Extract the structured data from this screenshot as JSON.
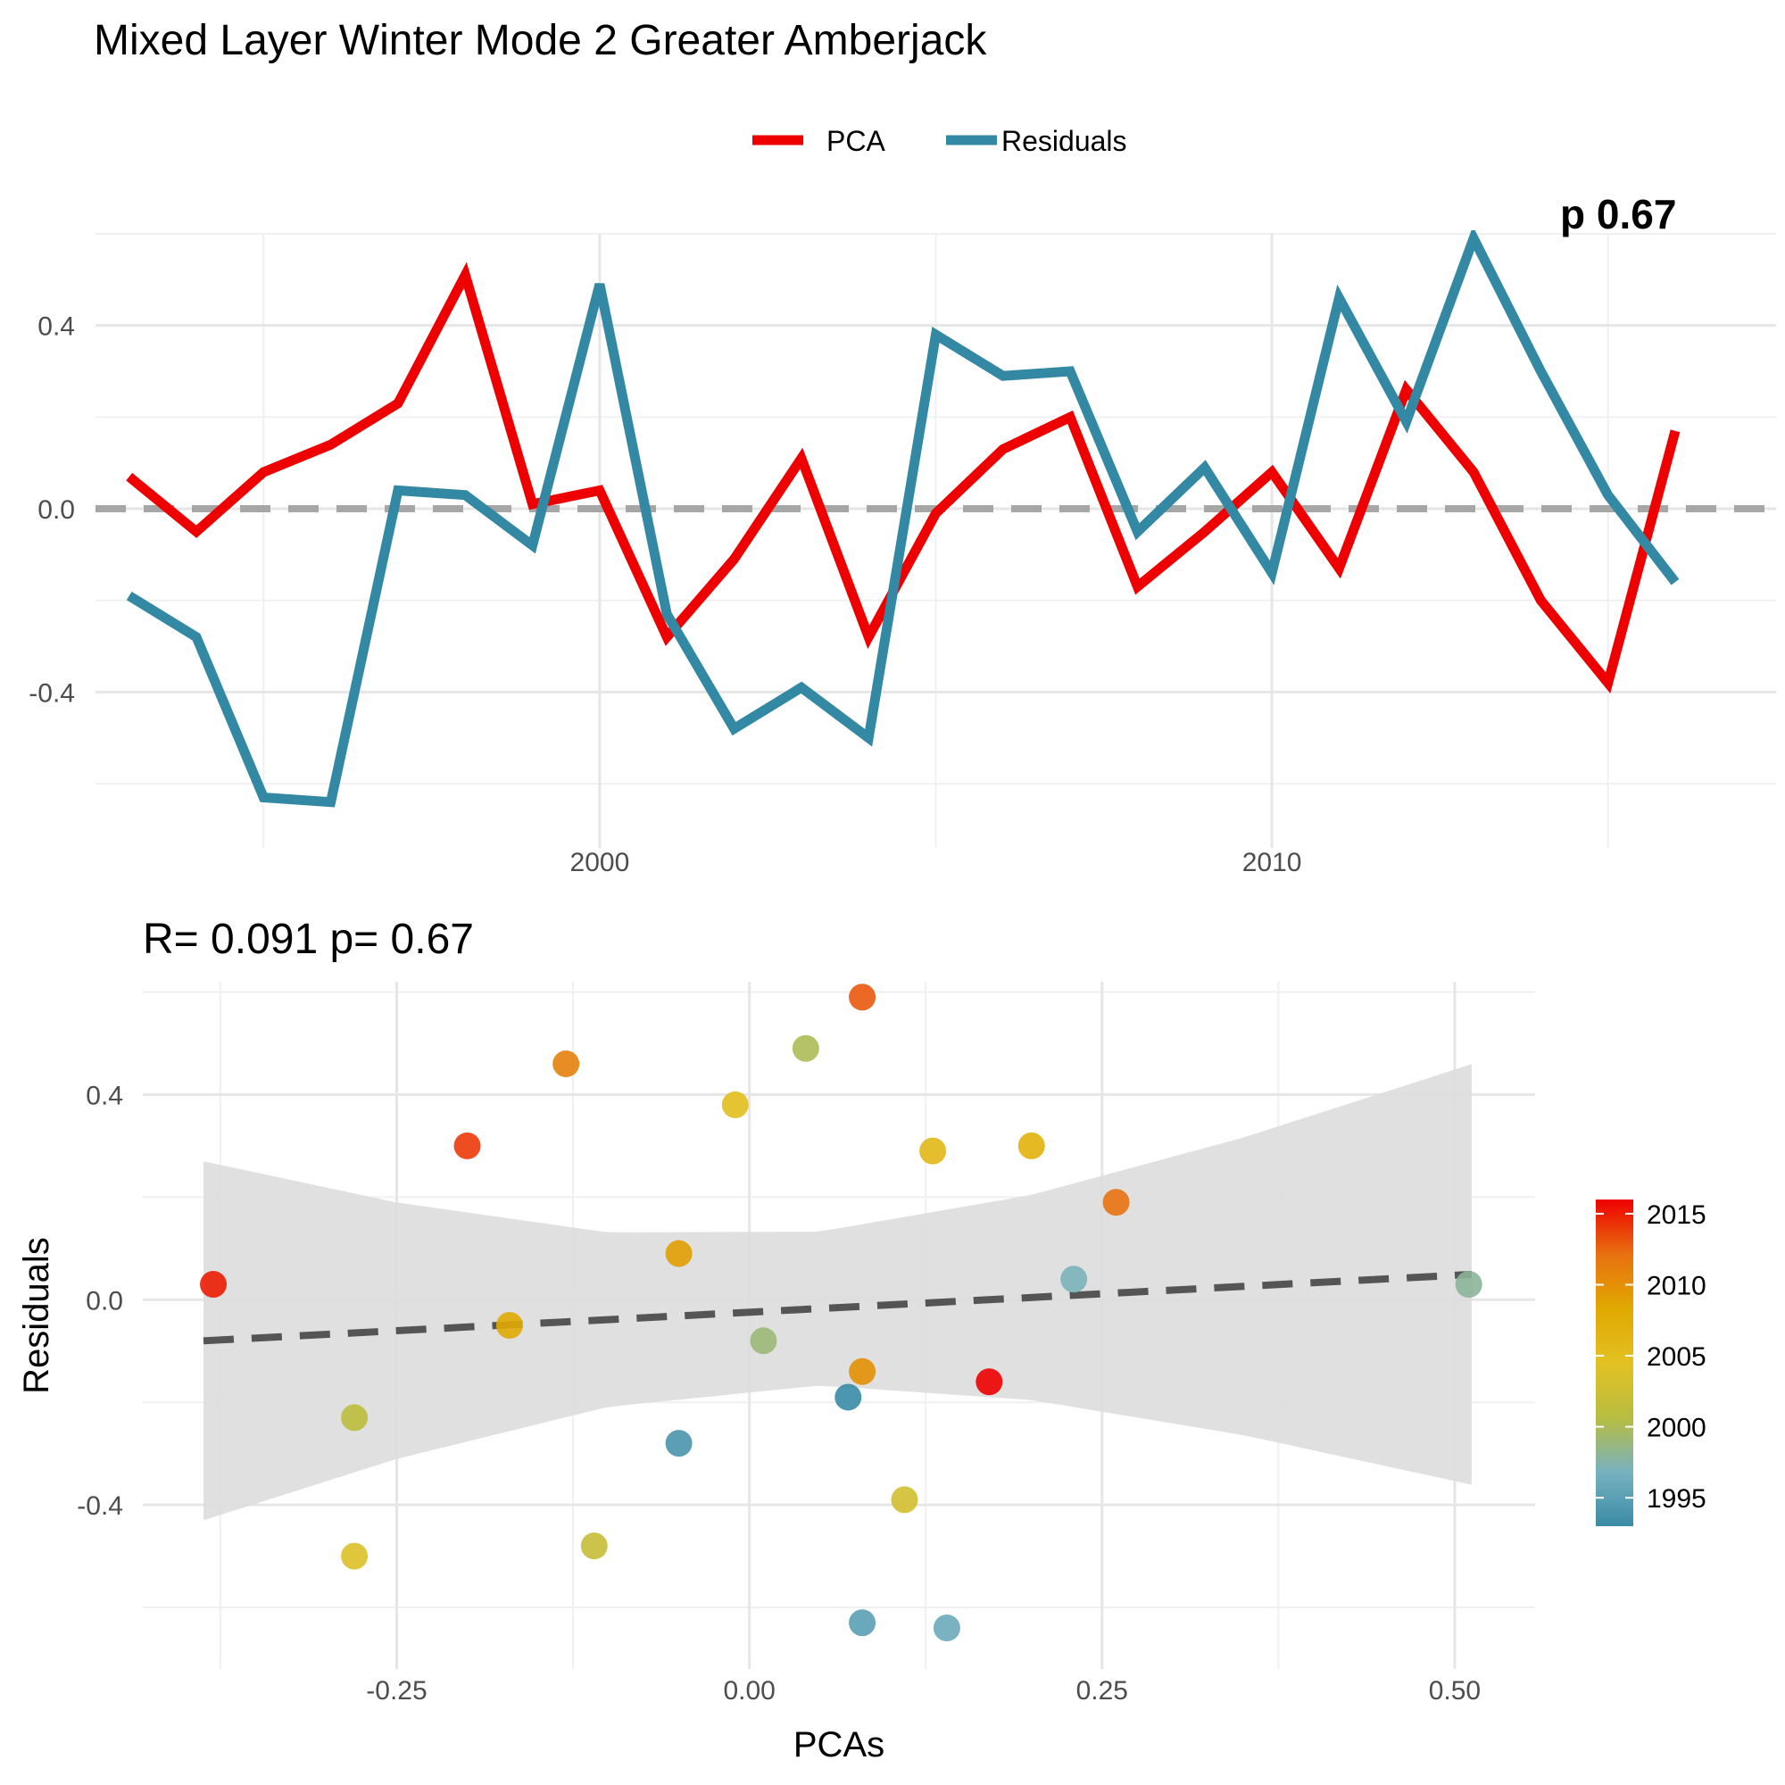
{
  "title": "Mixed Layer Winter Mode 2 Greater Amberjack",
  "colors": {
    "pca": "#ee0000",
    "residuals": "#3388a3",
    "zero_line": "#a6a6a6",
    "ribbon": "#dddddd",
    "fit_line": "#555555",
    "grid": "#e6e6e6"
  },
  "chart_data": [
    {
      "type": "line",
      "title": "",
      "xlabel": "",
      "ylabel": "",
      "legend": {
        "position": "top",
        "entries": [
          "PCA",
          "Residuals"
        ]
      },
      "corner_label": "p 0.67",
      "x_ticks": [
        2000,
        2010
      ],
      "x_tick_labels": [
        "2000",
        "2010"
      ],
      "y_ticks": [
        -0.4,
        0.0,
        0.4
      ],
      "y_tick_labels": [
        "-0.4",
        "0.0",
        "0.4"
      ],
      "xlim": [
        1992.5,
        2017.5
      ],
      "ylim": [
        -0.74,
        0.6
      ],
      "reference_line": 0,
      "grid": true,
      "x": [
        1993,
        1994,
        1995,
        1996,
        1997,
        1998,
        1999,
        2000,
        2001,
        2002,
        2003,
        2004,
        2005,
        2006,
        2007,
        2008,
        2009,
        2010,
        2011,
        2012,
        2013,
        2014,
        2015,
        2016,
        2017
      ],
      "series": [
        {
          "name": "PCA",
          "color": "#ee0000",
          "values": [
            0.07,
            -0.05,
            0.08,
            0.14,
            0.23,
            0.51,
            0.01,
            0.04,
            -0.28,
            -0.11,
            0.11,
            -0.28,
            -0.01,
            0.13,
            0.2,
            -0.17,
            -0.05,
            0.08,
            -0.13,
            0.26,
            0.08,
            -0.2,
            -0.38,
            0.17,
            null
          ]
        },
        {
          "name": "Residuals",
          "color": "#3388a3",
          "values": [
            -0.19,
            -0.28,
            -0.63,
            -0.64,
            0.04,
            0.03,
            -0.08,
            0.49,
            -0.23,
            -0.48,
            -0.39,
            -0.5,
            0.38,
            0.29,
            0.3,
            -0.05,
            0.09,
            -0.14,
            0.46,
            0.19,
            0.59,
            0.3,
            0.03,
            -0.16,
            null
          ]
        }
      ]
    },
    {
      "type": "scatter",
      "title": "R= 0.091  p= 0.67",
      "xlabel": "PCAs",
      "ylabel": "Residuals",
      "x_ticks": [
        -0.25,
        0.0,
        0.25,
        0.5
      ],
      "x_tick_labels": [
        "-0.25",
        "0.00",
        "0.25",
        "0.50"
      ],
      "y_ticks": [
        -0.4,
        0.0,
        0.4
      ],
      "y_tick_labels": [
        "-0.4",
        "0.0",
        "0.4"
      ],
      "xlim": [
        -0.43,
        0.557
      ],
      "ylim": [
        -0.72,
        0.62
      ],
      "grid": true,
      "colorbar": {
        "title": "",
        "range": [
          1993,
          2016
        ],
        "ticks": [
          1995,
          2000,
          2005,
          2010,
          2015
        ],
        "tick_labels": [
          "1995",
          "2000",
          "2005",
          "2010",
          "2015"
        ],
        "stops": [
          "#3a8ba6",
          "#78b2c0",
          "#b8bd40",
          "#e2c123",
          "#e0a800",
          "#e87010",
          "#ee0000"
        ]
      },
      "fit": {
        "intercept": -0.0244,
        "slope": 0.144,
        "x_range": [
          -0.387,
          0.512
        ],
        "ci_half_width_at": [
          [
            -0.387,
            0.35
          ],
          [
            -0.25,
            0.25
          ],
          [
            -0.1,
            0.17
          ],
          [
            0.05,
            0.15
          ],
          [
            0.2,
            0.2
          ],
          [
            0.35,
            0.29
          ],
          [
            0.512,
            0.41
          ]
        ]
      },
      "points": [
        {
          "x": 0.07,
          "y": -0.19,
          "year": 1993
        },
        {
          "x": -0.05,
          "y": -0.28,
          "year": 1994
        },
        {
          "x": 0.08,
          "y": -0.63,
          "year": 1995
        },
        {
          "x": 0.14,
          "y": -0.64,
          "year": 1996
        },
        {
          "x": 0.23,
          "y": 0.04,
          "year": 1997
        },
        {
          "x": 0.51,
          "y": 0.03,
          "year": 1998
        },
        {
          "x": 0.01,
          "y": -0.08,
          "year": 1999
        },
        {
          "x": 0.04,
          "y": 0.49,
          "year": 2000
        },
        {
          "x": -0.28,
          "y": -0.23,
          "year": 2001
        },
        {
          "x": -0.11,
          "y": -0.48,
          "year": 2002
        },
        {
          "x": 0.11,
          "y": -0.39,
          "year": 2003
        },
        {
          "x": -0.28,
          "y": -0.5,
          "year": 2004
        },
        {
          "x": -0.01,
          "y": 0.38,
          "year": 2005
        },
        {
          "x": 0.13,
          "y": 0.29,
          "year": 2006
        },
        {
          "x": 0.2,
          "y": 0.3,
          "year": 2007
        },
        {
          "x": -0.17,
          "y": -0.05,
          "year": 2008
        },
        {
          "x": -0.05,
          "y": 0.09,
          "year": 2009
        },
        {
          "x": 0.08,
          "y": -0.14,
          "year": 2010
        },
        {
          "x": -0.13,
          "y": 0.46,
          "year": 2011
        },
        {
          "x": 0.26,
          "y": 0.19,
          "year": 2012
        },
        {
          "x": 0.08,
          "y": 0.59,
          "year": 2013
        },
        {
          "x": -0.2,
          "y": 0.3,
          "year": 2014
        },
        {
          "x": -0.38,
          "y": 0.03,
          "year": 2015
        },
        {
          "x": 0.17,
          "y": -0.16,
          "year": 2016
        }
      ]
    }
  ]
}
